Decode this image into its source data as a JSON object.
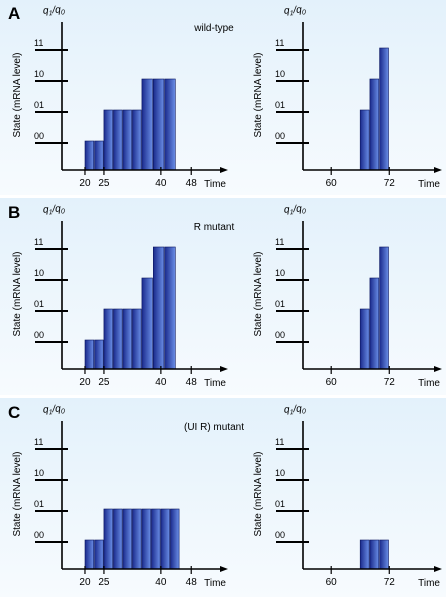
{
  "panels": [
    {
      "letter": "A",
      "title": "wild-type",
      "left_chart": {
        "type": "bar",
        "y_axis_label": "State (mRNA level)",
        "y_corner_label": "q1q0",
        "x_axis_label": "Time",
        "y_ticks": [
          "00",
          "01",
          "10",
          "11"
        ],
        "x_tick_labels": [
          {
            "t": 20,
            "label": "20"
          },
          {
            "t": 25,
            "label": "25"
          },
          {
            "t": 40,
            "label": "40"
          },
          {
            "t": 48,
            "label": "48"
          }
        ],
        "xlim": [
          15,
          54
        ],
        "bars": [
          {
            "t_start": 20,
            "t_end": 22.5,
            "state": 0
          },
          {
            "t_start": 22.5,
            "t_end": 25,
            "state": 0
          },
          {
            "t_start": 25,
            "t_end": 27.5,
            "state": 1
          },
          {
            "t_start": 27.5,
            "t_end": 30,
            "state": 1
          },
          {
            "t_start": 30,
            "t_end": 32.5,
            "state": 1
          },
          {
            "t_start": 32.5,
            "t_end": 35,
            "state": 1
          },
          {
            "t_start": 35,
            "t_end": 38,
            "state": 2
          },
          {
            "t_start": 38,
            "t_end": 41,
            "state": 2
          },
          {
            "t_start": 41,
            "t_end": 44,
            "state": 2
          }
        ]
      },
      "right_chart": {
        "type": "bar",
        "y_axis_label": "State (mRNA level)",
        "y_corner_label": "q1q0",
        "x_axis_label": "Time",
        "y_ticks": [
          "00",
          "01",
          "10",
          "11"
        ],
        "x_tick_labels": [
          {
            "t": 60,
            "label": "60"
          },
          {
            "t": 72,
            "label": "72"
          }
        ],
        "xlim": [
          55,
          80
        ],
        "bars": [
          {
            "t_start": 66,
            "t_end": 68,
            "state": 1
          },
          {
            "t_start": 68,
            "t_end": 70,
            "state": 2
          },
          {
            "t_start": 70,
            "t_end": 72,
            "state": 3
          }
        ]
      }
    },
    {
      "letter": "B",
      "title": "R mutant",
      "left_chart": {
        "type": "bar",
        "y_axis_label": "State (mRNA level)",
        "y_corner_label": "q1q0",
        "x_axis_label": "Time",
        "y_ticks": [
          "00",
          "01",
          "10",
          "11"
        ],
        "x_tick_labels": [
          {
            "t": 20,
            "label": "20"
          },
          {
            "t": 25,
            "label": "25"
          },
          {
            "t": 40,
            "label": "40"
          },
          {
            "t": 48,
            "label": "48"
          }
        ],
        "xlim": [
          15,
          54
        ],
        "bars": [
          {
            "t_start": 20,
            "t_end": 22.5,
            "state": 0
          },
          {
            "t_start": 22.5,
            "t_end": 25,
            "state": 0
          },
          {
            "t_start": 25,
            "t_end": 27.5,
            "state": 1
          },
          {
            "t_start": 27.5,
            "t_end": 30,
            "state": 1
          },
          {
            "t_start": 30,
            "t_end": 32.5,
            "state": 1
          },
          {
            "t_start": 32.5,
            "t_end": 35,
            "state": 1
          },
          {
            "t_start": 35,
            "t_end": 38,
            "state": 2
          },
          {
            "t_start": 38,
            "t_end": 41,
            "state": 3
          },
          {
            "t_start": 41,
            "t_end": 44,
            "state": 3
          }
        ]
      },
      "right_chart": {
        "type": "bar",
        "y_axis_label": "State (mRNA level)",
        "y_corner_label": "q1q0",
        "x_axis_label": "Time",
        "y_ticks": [
          "00",
          "01",
          "10",
          "11"
        ],
        "x_tick_labels": [
          {
            "t": 60,
            "label": "60"
          },
          {
            "t": 72,
            "label": "72"
          }
        ],
        "xlim": [
          55,
          80
        ],
        "bars": [
          {
            "t_start": 66,
            "t_end": 68,
            "state": 1
          },
          {
            "t_start": 68,
            "t_end": 70,
            "state": 2
          },
          {
            "t_start": 70,
            "t_end": 72,
            "state": 3
          }
        ]
      }
    },
    {
      "letter": "C",
      "title": "(UI R) mutant",
      "left_chart": {
        "type": "bar",
        "y_axis_label": "State (mRNA level)",
        "y_corner_label": "q1q0",
        "x_axis_label": "Time",
        "y_ticks": [
          "00",
          "01",
          "10",
          "11"
        ],
        "x_tick_labels": [
          {
            "t": 20,
            "label": "20"
          },
          {
            "t": 25,
            "label": "25"
          },
          {
            "t": 40,
            "label": "40"
          },
          {
            "t": 48,
            "label": "48"
          }
        ],
        "xlim": [
          15,
          54
        ],
        "bars": [
          {
            "t_start": 20,
            "t_end": 22.5,
            "state": 0
          },
          {
            "t_start": 22.5,
            "t_end": 25,
            "state": 0
          },
          {
            "t_start": 25,
            "t_end": 27.5,
            "state": 1
          },
          {
            "t_start": 27.5,
            "t_end": 30,
            "state": 1
          },
          {
            "t_start": 30,
            "t_end": 32.5,
            "state": 1
          },
          {
            "t_start": 32.5,
            "t_end": 35,
            "state": 1
          },
          {
            "t_start": 35,
            "t_end": 37.5,
            "state": 1
          },
          {
            "t_start": 37.5,
            "t_end": 40,
            "state": 1
          },
          {
            "t_start": 40,
            "t_end": 42.5,
            "state": 1
          },
          {
            "t_start": 42.5,
            "t_end": 45,
            "state": 1
          }
        ]
      },
      "right_chart": {
        "type": "bar",
        "y_axis_label": "State (mRNA level)",
        "y_corner_label": "q1q0",
        "x_axis_label": "Time",
        "y_ticks": [
          "00",
          "01",
          "10",
          "11"
        ],
        "x_tick_labels": [
          {
            "t": 60,
            "label": "60"
          },
          {
            "t": 72,
            "label": "72"
          }
        ],
        "xlim": [
          55,
          80
        ],
        "bars": [
          {
            "t_start": 66,
            "t_end": 68,
            "state": 0
          },
          {
            "t_start": 68,
            "t_end": 70,
            "state": 0
          },
          {
            "t_start": 70,
            "t_end": 72,
            "state": 0
          }
        ]
      }
    }
  ],
  "colors": {
    "panel_bg_top": "#e3f1fb",
    "panel_bg_bottom": "#f7fbfe",
    "bar_dark": "#1a2a8c",
    "bar_light": "#6a8ee6",
    "axis": "#000000"
  }
}
